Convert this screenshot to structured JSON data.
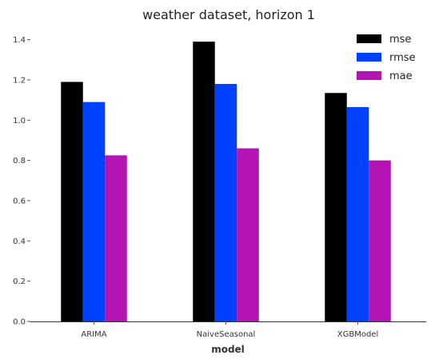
{
  "chart_data": {
    "type": "bar",
    "title": "weather dataset, horizon 1",
    "xlabel": "model",
    "ylabel": "",
    "categories": [
      "ARIMA",
      "NaiveSeasonal",
      "XGBModel"
    ],
    "series": [
      {
        "name": "mse",
        "color": "#000000",
        "values": [
          1.19,
          1.39,
          1.135
        ]
      },
      {
        "name": "rmse",
        "color": "#0040ff",
        "values": [
          1.09,
          1.18,
          1.065
        ]
      },
      {
        "name": "mae",
        "color": "#b414b4",
        "values": [
          0.825,
          0.86,
          0.8
        ]
      }
    ],
    "ylim": [
      0,
      1.45
    ],
    "yticks": [
      "0.0",
      "0.2",
      "0.4",
      "0.6",
      "0.8",
      "1.0",
      "1.2",
      "1.4"
    ],
    "grid": false,
    "legend_position": "top-right"
  }
}
